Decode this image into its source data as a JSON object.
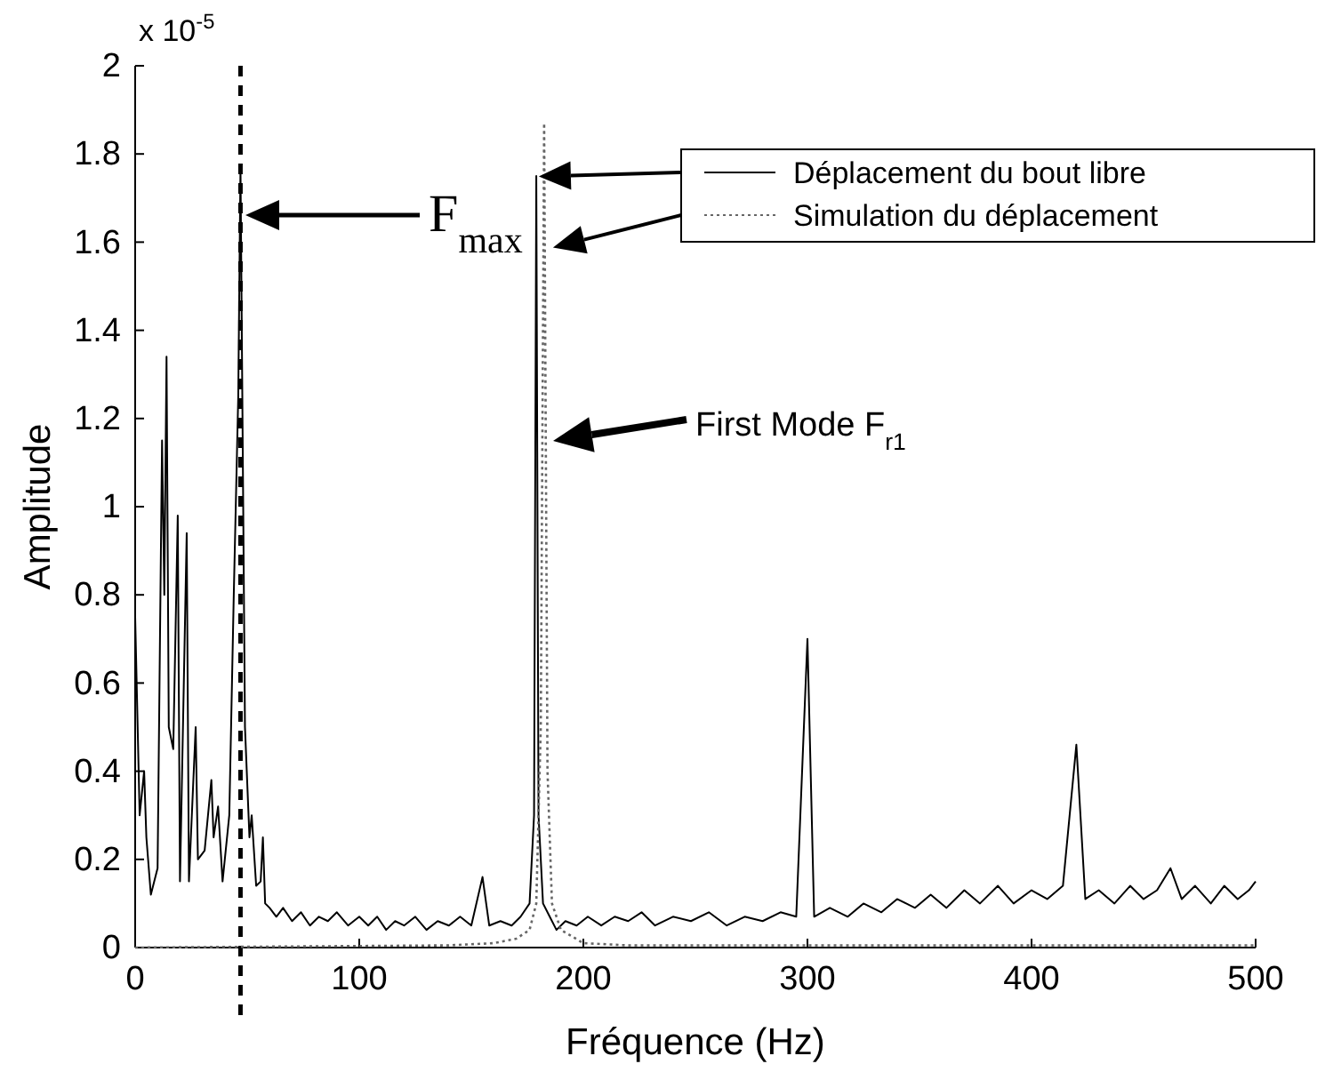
{
  "chart_data": {
    "type": "line",
    "xlabel": "Fréquence (Hz)",
    "ylabel": "Amplitude",
    "xlim": [
      0,
      500
    ],
    "xticks": [
      0,
      100,
      200,
      300,
      400,
      500
    ],
    "ylim": [
      0,
      2
    ],
    "yticks": [
      0,
      0.2,
      0.4,
      0.6,
      0.8,
      1,
      1.2,
      1.4,
      1.6,
      1.8,
      2
    ],
    "grid": false,
    "legend": "top right",
    "series": [
      {
        "name": "Déplacement du bout libre",
        "color": "#000000",
        "line_style": "solid",
        "x": [
          0,
          2,
          4,
          5,
          7,
          10,
          12,
          13,
          14,
          15,
          17,
          19,
          20,
          23,
          24,
          27,
          28,
          31,
          34,
          35,
          37,
          39,
          42,
          44,
          46,
          47,
          49,
          51,
          52,
          54,
          56,
          57,
          58,
          60,
          63,
          66,
          70,
          74,
          78,
          82,
          86,
          90,
          95,
          100,
          104,
          108,
          112,
          116,
          120,
          125,
          130,
          135,
          140,
          145,
          150,
          155,
          158,
          163,
          168,
          172,
          176,
          178,
          179,
          180,
          182,
          185,
          188,
          192,
          197,
          202,
          208,
          214,
          220,
          226,
          232,
          240,
          248,
          256,
          264,
          272,
          280,
          288,
          295,
          300,
          303,
          310,
          318,
          325,
          333,
          340,
          348,
          355,
          362,
          370,
          377,
          385,
          392,
          400,
          407,
          414,
          420,
          424,
          430,
          437,
          444,
          450,
          456,
          462,
          467,
          473,
          480,
          486,
          492,
          497,
          500
        ],
        "values": [
          0.75,
          0.3,
          0.4,
          0.25,
          0.12,
          0.18,
          1.15,
          0.8,
          1.34,
          0.5,
          0.45,
          0.98,
          0.15,
          0.94,
          0.15,
          0.5,
          0.2,
          0.22,
          0.38,
          0.25,
          0.32,
          0.15,
          0.3,
          0.8,
          1.25,
          1.77,
          0.5,
          0.25,
          0.3,
          0.14,
          0.15,
          0.25,
          0.1,
          0.09,
          0.07,
          0.09,
          0.06,
          0.08,
          0.05,
          0.07,
          0.06,
          0.08,
          0.05,
          0.07,
          0.05,
          0.07,
          0.04,
          0.06,
          0.05,
          0.07,
          0.04,
          0.06,
          0.05,
          0.07,
          0.05,
          0.16,
          0.05,
          0.06,
          0.05,
          0.07,
          0.1,
          0.3,
          1.75,
          0.3,
          0.1,
          0.07,
          0.04,
          0.06,
          0.05,
          0.07,
          0.05,
          0.07,
          0.06,
          0.08,
          0.05,
          0.07,
          0.06,
          0.08,
          0.05,
          0.07,
          0.06,
          0.08,
          0.07,
          0.7,
          0.07,
          0.09,
          0.07,
          0.1,
          0.08,
          0.11,
          0.09,
          0.12,
          0.09,
          0.13,
          0.1,
          0.14,
          0.1,
          0.13,
          0.11,
          0.14,
          0.46,
          0.11,
          0.13,
          0.1,
          0.14,
          0.11,
          0.13,
          0.18,
          0.11,
          0.14,
          0.1,
          0.14,
          0.11,
          0.13,
          0.15
        ]
      },
      {
        "name": "Simulation du déplacement",
        "color": "#666666",
        "line_style": "dotted",
        "x": [
          0,
          140,
          160,
          170,
          176,
          179,
          181,
          182.5,
          184,
          186,
          190,
          200,
          220,
          500
        ],
        "values": [
          0,
          0.005,
          0.01,
          0.02,
          0.04,
          0.1,
          0.5,
          1.87,
          0.4,
          0.1,
          0.04,
          0.01,
          0.005,
          0.005
        ]
      }
    ],
    "ref_lines": [
      {
        "axis": "x",
        "value": 47,
        "color": "#000000",
        "line_style": "dashed"
      }
    ],
    "annotations": [
      "F$_{max}$",
      "First Mode F$_{r1}$",
      "x 10$^{-5}$"
    ]
  }
}
